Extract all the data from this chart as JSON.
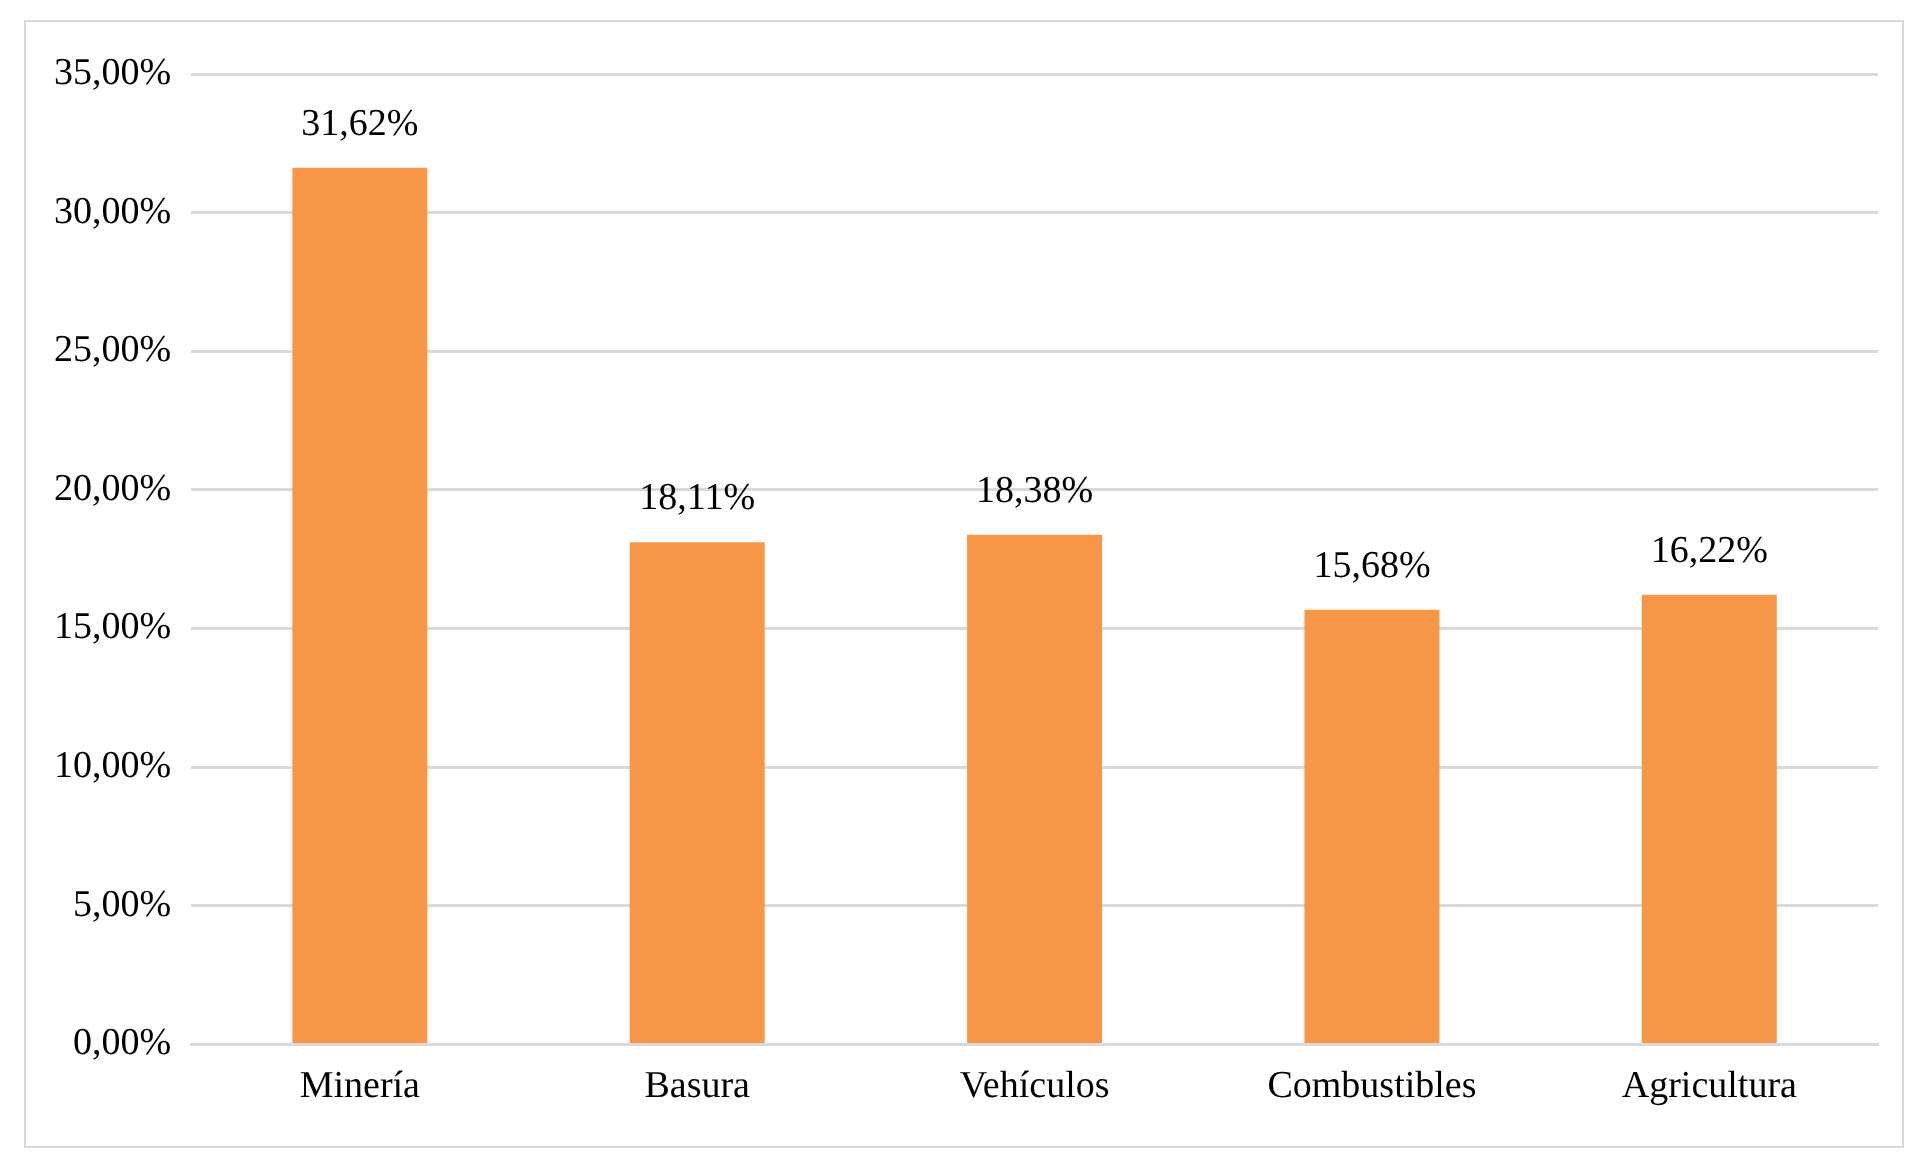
{
  "chart_data": {
    "type": "bar",
    "categories": [
      "Minería",
      "Basura",
      "Vehículos",
      "Combustibles",
      "Agricultura"
    ],
    "values": [
      31.62,
      18.11,
      18.38,
      15.68,
      16.22
    ],
    "value_labels": [
      "31,62%",
      "18,11%",
      "18,38%",
      "15,68%",
      "16,22%"
    ],
    "color": "#f79646",
    "ylim": [
      0,
      35
    ],
    "yticks": [
      {
        "value": 0,
        "label": "0,00%"
      },
      {
        "value": 5,
        "label": "5,00%"
      },
      {
        "value": 10,
        "label": "10,00%"
      },
      {
        "value": 15,
        "label": "15,00%"
      },
      {
        "value": 20,
        "label": "20,00%"
      },
      {
        "value": 25,
        "label": "25,00%"
      },
      {
        "value": 30,
        "label": "30,00%"
      },
      {
        "value": 35,
        "label": "35,00%"
      }
    ],
    "grid": "y",
    "legend": false
  }
}
